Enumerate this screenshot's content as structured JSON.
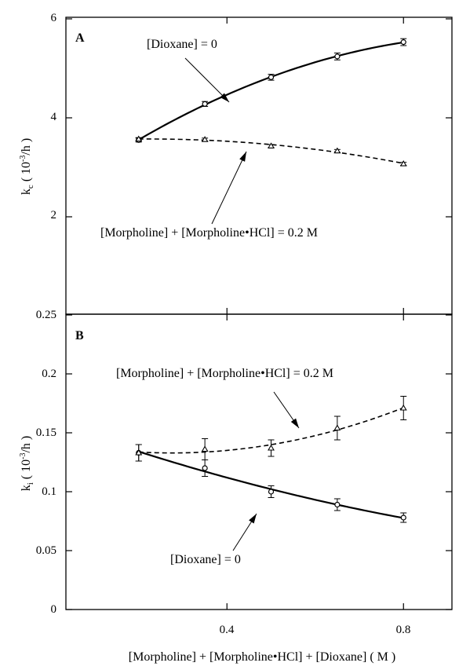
{
  "chart_data": [
    {
      "type": "line",
      "panel": "A",
      "xlim": [
        0.1,
        0.9
      ],
      "ylim": [
        0,
        6
      ],
      "y_scale": "piecewise",
      "y_ticks": [
        2,
        4,
        6
      ],
      "ylabel": {
        "main": "k",
        "sub": "c",
        "unit_open": " ( 10",
        "sup": "-3",
        "unit_close": "/h )"
      },
      "x": [
        0.2,
        0.35,
        0.5,
        0.65,
        0.8
      ],
      "series": [
        {
          "name": "[Dioxane] = 0",
          "marker": "circle",
          "line": "solid",
          "values": [
            3.55,
            4.28,
            4.82,
            5.24,
            5.53
          ],
          "errors": [
            0.04,
            0.05,
            0.06,
            0.07,
            0.07
          ]
        },
        {
          "name": "[Morpholine] + [Morpholine•HCl] = 0.2 M",
          "marker": "triangle",
          "line": "dashed",
          "values": [
            3.57,
            3.56,
            3.43,
            3.33,
            3.07
          ],
          "errors": [
            0.03,
            0.03,
            0.03,
            0.03,
            0.03
          ]
        }
      ],
      "annotations": [
        "[Dioxane] = 0",
        "[Morpholine] + [Morpholine•HCl] = 0.2 M"
      ]
    },
    {
      "type": "line",
      "panel": "B",
      "xlim": [
        0.1,
        0.9
      ],
      "ylim": [
        0,
        0.25
      ],
      "y_ticks": [
        "0",
        "0.05",
        "0.1",
        "0.15",
        "0.2",
        "0.25"
      ],
      "x_ticks": [
        "0.4",
        "0.8"
      ],
      "ylabel": {
        "main": "k",
        "sub": "i",
        "unit_open": " ( 10",
        "sup": "-3",
        "unit_close": "/h )"
      },
      "xlabel": "[Morpholine] + [Morpholine•HCl] + [Dioxane] ( M )",
      "x": [
        0.2,
        0.35,
        0.5,
        0.65,
        0.8
      ],
      "series": [
        {
          "name": "[Dioxane] = 0",
          "marker": "circle",
          "line": "solid",
          "values": [
            0.133,
            0.12,
            0.1,
            0.089,
            0.078
          ],
          "errors": [
            0.007,
            0.007,
            0.005,
            0.005,
            0.004
          ]
        },
        {
          "name": "[Morpholine] + [Morpholine•HCl] = 0.2 M",
          "marker": "triangle",
          "line": "dashed",
          "values": [
            0.133,
            0.136,
            0.137,
            0.154,
            0.171
          ],
          "errors": [
            0.007,
            0.009,
            0.007,
            0.01,
            0.01
          ]
        }
      ],
      "annotations": [
        "[Morpholine] + [Morpholine•HCl] = 0.2 M",
        "[Dioxane] = 0"
      ]
    }
  ],
  "labels": {
    "panel_a_letter": "A",
    "panel_b_letter": "B",
    "a_dioxane": "[Dioxane] = 0",
    "a_morpholine": "[Morpholine] + [Morpholine•HCl] = 0.2 M",
    "b_morpholine": "[Morpholine] + [Morpholine•HCl] = 0.2 M",
    "b_dioxane": "[Dioxane] = 0",
    "a_tick_2": "2",
    "a_tick_4": "4",
    "a_tick_6": "6",
    "b_tick_0": "0",
    "b_tick_005": "0.05",
    "b_tick_01": "0.1",
    "b_tick_015": "0.15",
    "b_tick_02": "0.2",
    "b_tick_025": "0.25",
    "x_tick_04": "0.4",
    "x_tick_08": "0.8",
    "xlabel": "[Morpholine] + [Morpholine•HCl] + [Dioxane] ( M )"
  }
}
